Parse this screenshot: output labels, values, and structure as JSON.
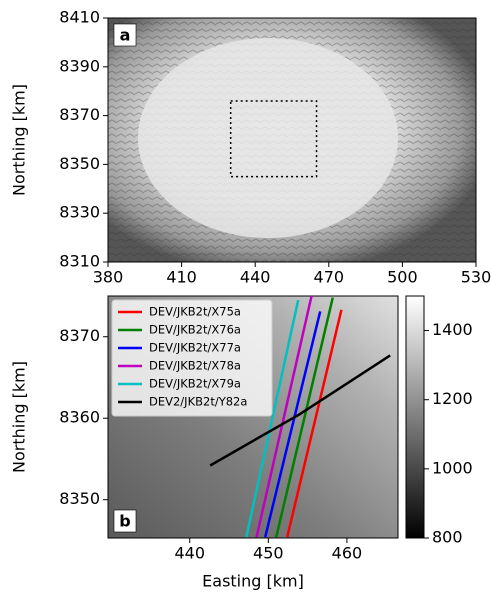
{
  "chart_data": [
    {
      "type": "image",
      "label": "a",
      "ylabel": "Northing [km]",
      "xlim": [
        380,
        530
      ],
      "xticks": [
        380,
        410,
        440,
        470,
        500,
        530
      ],
      "ylim": [
        8310,
        8410
      ],
      "yticks": [
        8310,
        8330,
        8350,
        8370,
        8390,
        8410
      ],
      "region": {
        "x": [
          430,
          465
        ],
        "y": [
          8345,
          8376
        ]
      }
    },
    {
      "type": "line",
      "label": "b",
      "xlabel": "Easting [km]",
      "ylabel": "Northing [km]",
      "xlim": [
        429.6,
        466.5
      ],
      "xticks": [
        440,
        450,
        460
      ],
      "ylim": [
        8345.3,
        8375
      ],
      "yticks": [
        8350,
        8360,
        8370
      ],
      "legend": "upper left",
      "series": [
        {
          "name": "DEV/JKB2t/X75a",
          "color": "#ff0000",
          "x": [
            452.4,
            459.3
          ],
          "values": [
            8345.4,
            8373.3
          ]
        },
        {
          "name": "DEV/JKB2t/X76a",
          "color": "#008000",
          "x": [
            451.0,
            458.2
          ],
          "values": [
            8345.4,
            8374.8
          ]
        },
        {
          "name": "DEV/JKB2t/X77a",
          "color": "#0000ff",
          "x": [
            449.6,
            456.6
          ],
          "values": [
            8345.4,
            8373.1
          ]
        },
        {
          "name": "DEV/JKB2t/X78a",
          "color": "#c000c0",
          "x": [
            448.5,
            455.5
          ],
          "values": [
            8345.4,
            8375.0
          ]
        },
        {
          "name": "DEV/JKB2t/X79a",
          "color": "#00c0c0",
          "x": [
            447.2,
            453.8
          ],
          "values": [
            8345.4,
            8374.5
          ]
        },
        {
          "name": "DEV2/JKB2t/Y82a",
          "color": "#000000",
          "x": [
            442.6,
            454.0,
            465.5
          ],
          "values": [
            8354.2,
            8360.5,
            8367.7
          ]
        }
      ],
      "colorbar": {
        "lim": [
          800,
          1500
        ],
        "ticks": [
          800,
          1000,
          1200,
          1400
        ]
      }
    }
  ]
}
